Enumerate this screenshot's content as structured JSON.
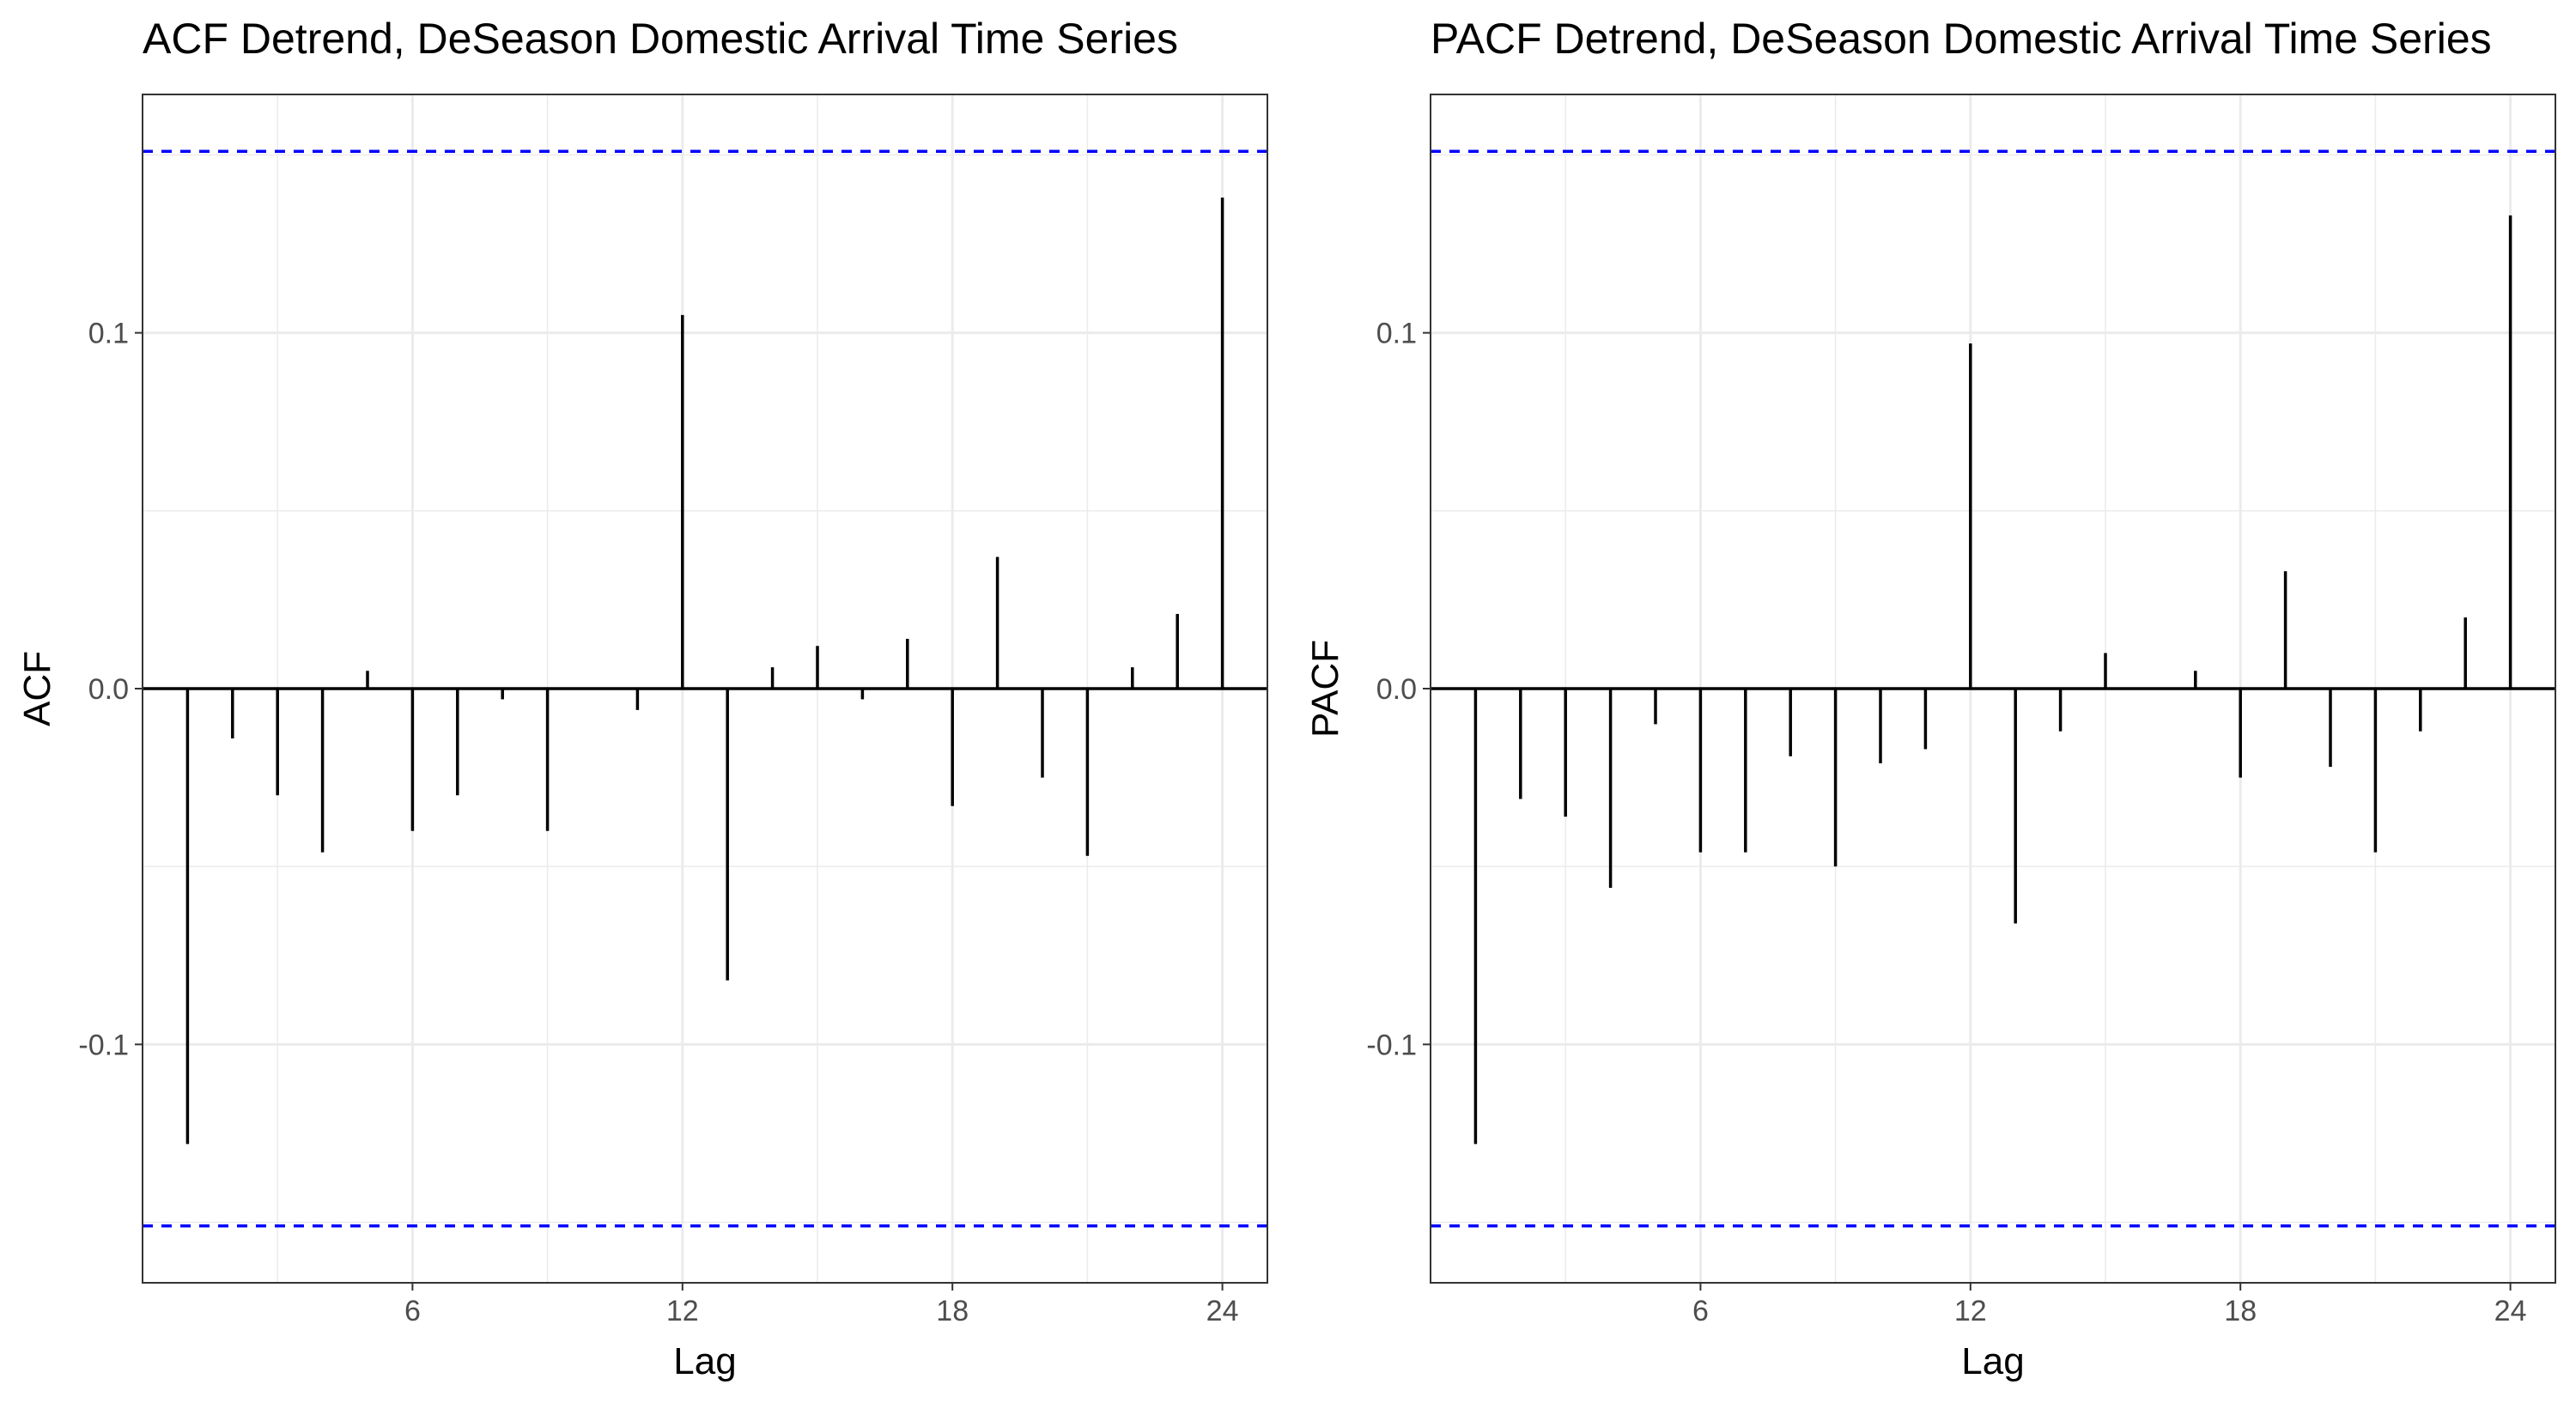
{
  "chart_data": [
    {
      "type": "bar",
      "title": "ACF Detrend, DeSeason Domestic Arrival Time Series",
      "xlabel": "Lag",
      "ylabel": "ACF",
      "x_ticks": [
        6,
        12,
        18,
        24
      ],
      "y_ticks": [
        -0.1,
        0.0,
        0.1
      ],
      "y_tick_labels": [
        "-0.1",
        "0.0",
        "0.1"
      ],
      "xlim": [
        0,
        25
      ],
      "ylim": [
        -0.167,
        0.167
      ],
      "confidence_bound": 0.151,
      "grid": true,
      "lags": [
        1,
        2,
        3,
        4,
        5,
        6,
        7,
        8,
        9,
        10,
        11,
        12,
        13,
        14,
        15,
        16,
        17,
        18,
        19,
        20,
        21,
        22,
        23,
        24
      ],
      "values": [
        -0.128,
        -0.014,
        -0.03,
        -0.046,
        0.005,
        -0.04,
        -0.03,
        -0.003,
        -0.04,
        0.0,
        -0.006,
        0.105,
        -0.082,
        0.006,
        0.012,
        -0.003,
        0.014,
        -0.033,
        0.037,
        -0.025,
        -0.047,
        0.006,
        0.021,
        0.138
      ]
    },
    {
      "type": "bar",
      "title": "PACF Detrend, DeSeason Domestic Arrival Time Series",
      "xlabel": "Lag",
      "ylabel": "PACF",
      "x_ticks": [
        6,
        12,
        18,
        24
      ],
      "y_ticks": [
        -0.1,
        0.0,
        0.1
      ],
      "y_tick_labels": [
        "-0.1",
        "0.0",
        "0.1"
      ],
      "xlim": [
        0,
        25
      ],
      "ylim": [
        -0.167,
        0.167
      ],
      "confidence_bound": 0.151,
      "grid": true,
      "lags": [
        1,
        2,
        3,
        4,
        5,
        6,
        7,
        8,
        9,
        10,
        11,
        12,
        13,
        14,
        15,
        16,
        17,
        18,
        19,
        20,
        21,
        22,
        23,
        24
      ],
      "values": [
        -0.128,
        -0.031,
        -0.036,
        -0.056,
        -0.01,
        -0.046,
        -0.046,
        -0.019,
        -0.05,
        -0.021,
        -0.017,
        0.097,
        -0.066,
        -0.012,
        0.01,
        0.0,
        0.005,
        -0.025,
        0.033,
        -0.022,
        -0.046,
        -0.012,
        0.02,
        0.133
      ]
    }
  ]
}
